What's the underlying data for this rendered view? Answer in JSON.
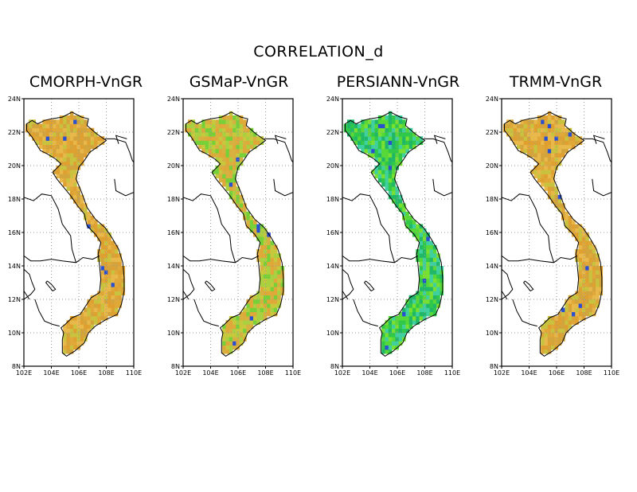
{
  "title": "CORRELATION_d",
  "panels": [
    {
      "name": "CMORPH-VnGR",
      "tone": "high"
    },
    {
      "name": "GSMaP-VnGR",
      "tone": "mixed"
    },
    {
      "name": "PERSIANN-VnGR",
      "tone": "low"
    },
    {
      "name": "TRMM-VnGR",
      "tone": "high"
    }
  ],
  "map": {
    "lat_ticks": [
      "24N",
      "22N",
      "20N",
      "18N",
      "16N",
      "14N",
      "12N",
      "10N",
      "8N"
    ],
    "lon_ticks": [
      "102E",
      "104E",
      "106E",
      "108E",
      "110E"
    ],
    "lat_range": [
      8,
      24
    ],
    "lon_range": [
      102,
      110
    ],
    "grid": "dotted"
  },
  "colors": {
    "high": [
      "#e0a838",
      "#d4a43c",
      "#e8b84a",
      "#c9c23e",
      "#e0a030"
    ],
    "mixed": [
      "#d8b040",
      "#a8d040",
      "#c8c83c",
      "#e0a838",
      "#78d038"
    ],
    "low": [
      "#58d838",
      "#30c848",
      "#78e030",
      "#20b868",
      "#40d0a0"
    ],
    "water": "#2850d0"
  }
}
